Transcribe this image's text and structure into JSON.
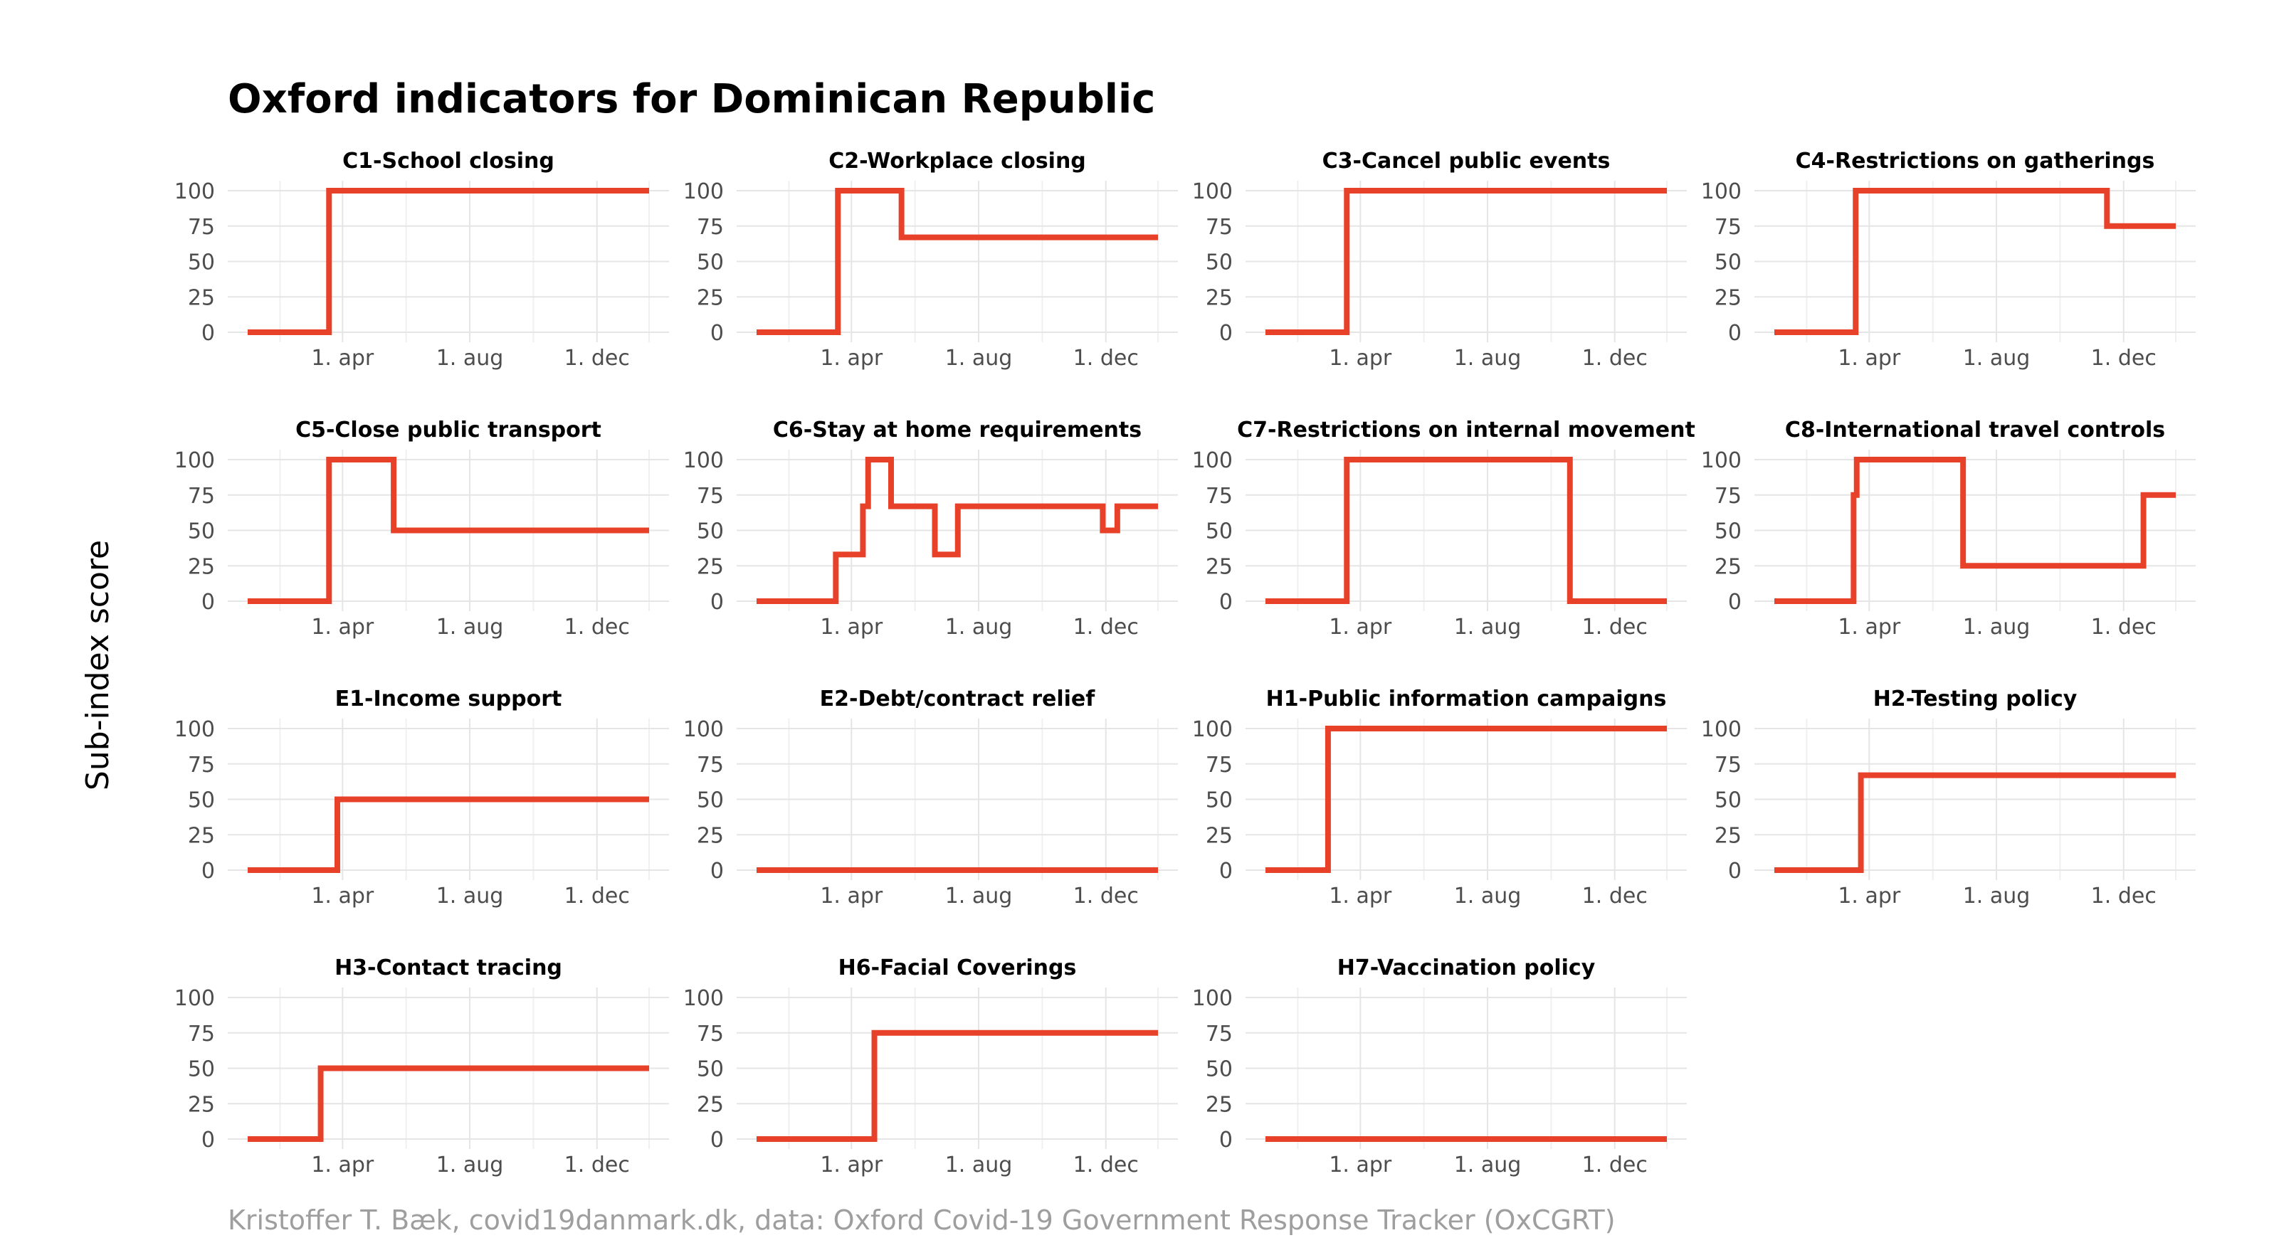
{
  "title": "Oxford indicators for Dominican Republic",
  "ylabel": "Sub-index score",
  "caption": "Kristoffer T. Bæk, covid19danmark.dk, data: Oxford Covid-19 Government Response Tracker (OxCGRT)",
  "colors": {
    "line": "#E8412A",
    "grid": "#e5e5e5",
    "tick_text": "#4d4d4d",
    "caption": "#9e9e9e"
  },
  "chart_data": {
    "type": "line",
    "grid": true,
    "y_ticks": [
      0,
      25,
      50,
      75,
      100
    ],
    "ylim": [
      0,
      100
    ],
    "x_ticks": [
      "1. apr",
      "1. aug",
      "1. dec"
    ],
    "x_tick_dates": [
      "2020-04-01",
      "2020-08-01",
      "2020-12-01"
    ],
    "xlim": [
      "2020-01-01",
      "2021-01-20"
    ],
    "panels": [
      {
        "title": "C1-School closing",
        "steps": [
          [
            "2020-01-01",
            0
          ],
          [
            "2020-03-19",
            100
          ]
        ]
      },
      {
        "title": "C2-Workplace closing",
        "steps": [
          [
            "2020-01-01",
            0
          ],
          [
            "2020-03-19",
            100
          ],
          [
            "2020-05-19",
            67
          ]
        ]
      },
      {
        "title": "C3-Cancel public events",
        "steps": [
          [
            "2020-01-01",
            0
          ],
          [
            "2020-03-19",
            100
          ]
        ]
      },
      {
        "title": "C4-Restrictions on gatherings",
        "steps": [
          [
            "2020-01-01",
            0
          ],
          [
            "2020-03-19",
            100
          ],
          [
            "2020-11-15",
            75
          ]
        ]
      },
      {
        "title": "C5-Close public transport",
        "steps": [
          [
            "2020-01-01",
            0
          ],
          [
            "2020-03-19",
            100
          ],
          [
            "2020-05-20",
            50
          ]
        ]
      },
      {
        "title": "C6-Stay at home requirements",
        "steps": [
          [
            "2020-01-01",
            0
          ],
          [
            "2020-03-17",
            33
          ],
          [
            "2020-04-12",
            67
          ],
          [
            "2020-04-17",
            100
          ],
          [
            "2020-05-09",
            67
          ],
          [
            "2020-06-20",
            33
          ],
          [
            "2020-07-12",
            67
          ],
          [
            "2020-11-28",
            50
          ],
          [
            "2020-12-12",
            67
          ]
        ]
      },
      {
        "title": "C7-Restrictions on internal movement",
        "steps": [
          [
            "2020-01-01",
            0
          ],
          [
            "2020-03-19",
            100
          ],
          [
            "2020-10-19",
            0
          ]
        ]
      },
      {
        "title": "C8-International travel controls",
        "steps": [
          [
            "2020-01-01",
            0
          ],
          [
            "2020-03-17",
            75
          ],
          [
            "2020-03-20",
            100
          ],
          [
            "2020-06-30",
            25
          ],
          [
            "2020-12-20",
            75
          ]
        ]
      },
      {
        "title": "E1-Income support",
        "steps": [
          [
            "2020-01-01",
            0
          ],
          [
            "2020-03-27",
            50
          ]
        ]
      },
      {
        "title": "E2-Debt/contract relief",
        "steps": [
          [
            "2020-01-01",
            0
          ]
        ]
      },
      {
        "title": "H1-Public information campaigns",
        "steps": [
          [
            "2020-01-01",
            0
          ],
          [
            "2020-03-01",
            100
          ]
        ]
      },
      {
        "title": "H2-Testing policy",
        "steps": [
          [
            "2020-01-01",
            0
          ],
          [
            "2020-03-24",
            67
          ]
        ]
      },
      {
        "title": "H3-Contact tracing",
        "steps": [
          [
            "2020-01-01",
            0
          ],
          [
            "2020-03-11",
            50
          ]
        ]
      },
      {
        "title": "H6-Facial Coverings",
        "steps": [
          [
            "2020-01-01",
            0
          ],
          [
            "2020-04-23",
            75
          ]
        ]
      },
      {
        "title": "H7-Vaccination policy",
        "steps": [
          [
            "2020-01-01",
            0
          ]
        ]
      }
    ]
  }
}
